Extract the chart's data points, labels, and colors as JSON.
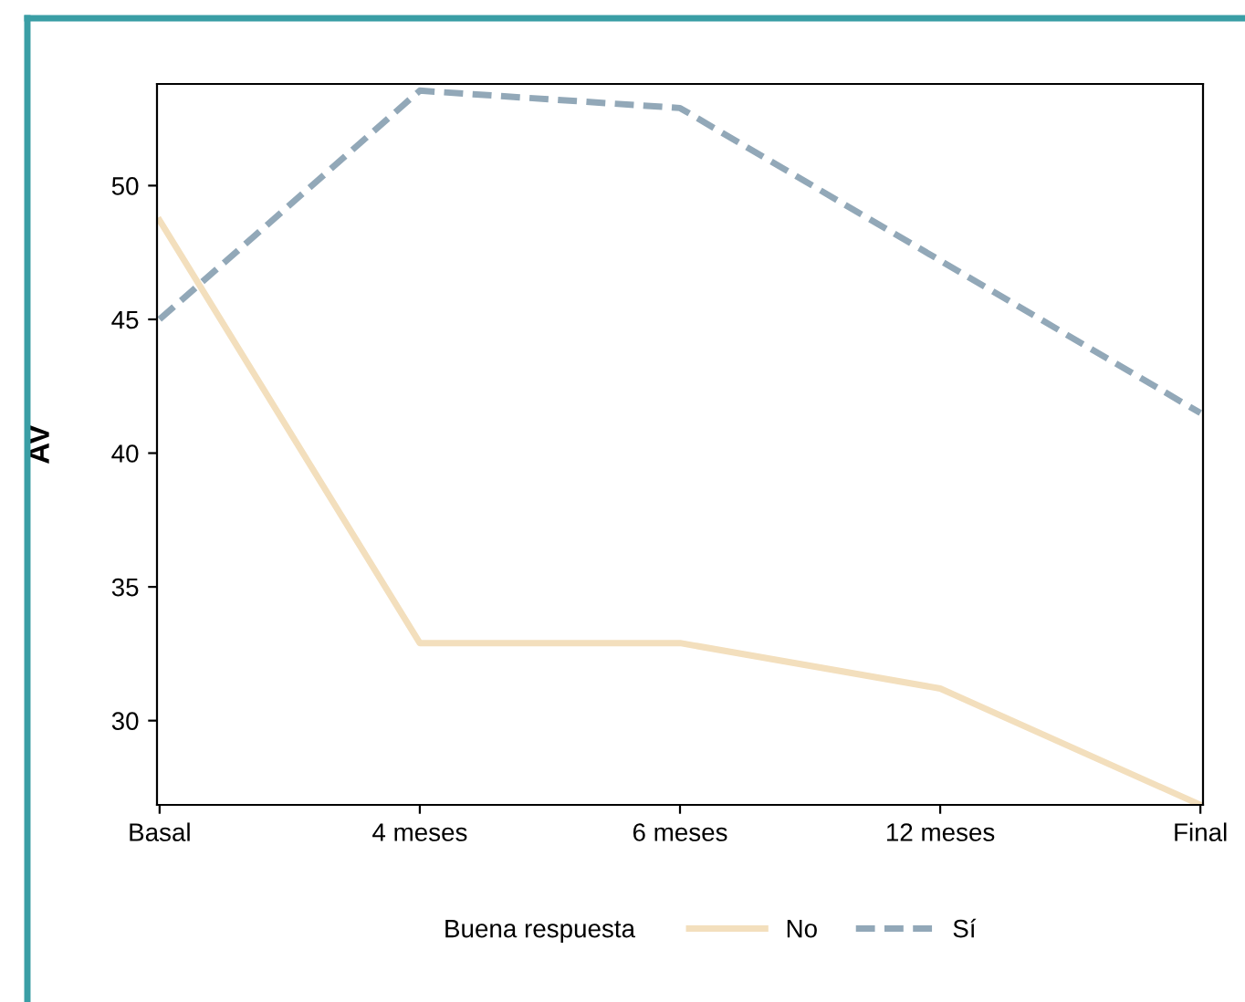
{
  "chart_data": {
    "type": "line",
    "ylabel": "AV",
    "legend_title": "Buena respuesta",
    "legend": "bottom",
    "grid": false,
    "categories": [
      "Basal",
      "4 meses",
      "6 meses",
      "12 meses",
      "Final"
    ],
    "ylim": [
      26.85,
      53.8
    ],
    "yticks": [
      30,
      35,
      40,
      45,
      50
    ],
    "series": [
      {
        "name": "No",
        "color": "#f3dfbd",
        "line_style": "solid",
        "values": [
          48.7,
          32.9,
          32.9,
          31.2,
          26.85
        ]
      },
      {
        "name": "Sí",
        "color": "#92a8b8",
        "line_style": "dashed",
        "values": [
          45.0,
          53.55,
          52.9,
          47.2,
          41.5
        ]
      }
    ]
  }
}
